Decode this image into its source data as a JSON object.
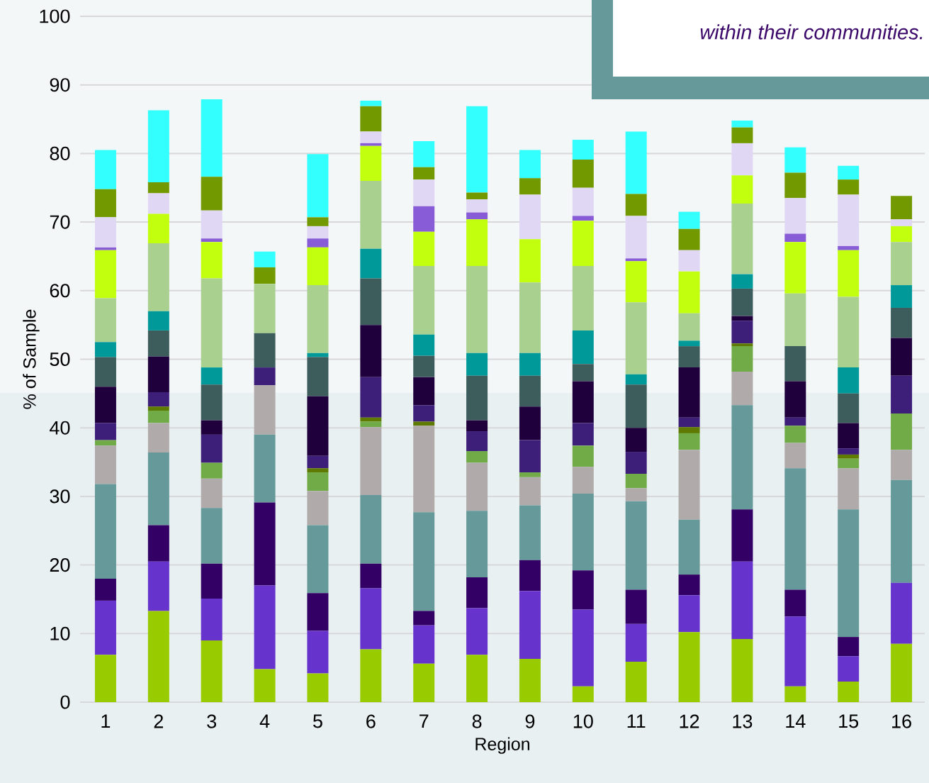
{
  "chart_data": {
    "type": "bar",
    "stacked": true,
    "grid": "y",
    "xlabel": "Region",
    "ylabel": "% of Sample",
    "annotations": [
      "within their communities."
    ],
    "categories": [
      "1",
      "2",
      "3",
      "4",
      "5",
      "6",
      "7",
      "8",
      "9",
      "10",
      "11",
      "12",
      "13",
      "14",
      "15",
      "16"
    ],
    "ylim": [
      0,
      100
    ],
    "yticks": [
      0,
      10,
      20,
      30,
      40,
      50,
      60,
      70,
      80,
      90,
      100
    ],
    "series": [
      {
        "color": "#99cc00",
        "values": [
          6.9,
          13.3,
          9.0,
          4.8,
          4.2,
          7.7,
          5.6,
          6.9,
          6.3,
          2.3,
          5.9,
          10.2,
          9.2,
          2.3,
          3.0,
          8.5
        ]
      },
      {
        "color": "#6633cc",
        "values": [
          7.9,
          7.2,
          6.1,
          12.2,
          6.2,
          8.9,
          5.6,
          6.8,
          9.9,
          11.2,
          5.5,
          5.4,
          11.3,
          10.2,
          3.7,
          8.9
        ]
      },
      {
        "color": "#330066",
        "values": [
          3.2,
          5.3,
          5.1,
          12.1,
          5.5,
          3.6,
          2.1,
          4.5,
          4.5,
          5.7,
          5.0,
          3.0,
          7.6,
          3.9,
          2.8,
          0
        ]
      },
      {
        "color": "#669999",
        "values": [
          13.8,
          10.6,
          8.1,
          9.9,
          9.9,
          10.0,
          14.4,
          9.7,
          8.0,
          11.2,
          12.9,
          8.0,
          15.2,
          17.7,
          18.6,
          15.0
        ]
      },
      {
        "color": "#b0abaa",
        "values": [
          5.6,
          4.3,
          4.3,
          7.2,
          5.0,
          9.9,
          12.6,
          7.0,
          4.1,
          3.9,
          1.9,
          10.2,
          4.9,
          3.7,
          6.0,
          4.4
        ]
      },
      {
        "color": "#70ab47",
        "values": [
          0.8,
          1.8,
          2.3,
          0,
          2.7,
          0.8,
          0,
          1.7,
          0.7,
          3.1,
          2.1,
          2.4,
          3.7,
          2.5,
          1.4,
          5.3
        ]
      },
      {
        "color": "#5f7a00",
        "values": [
          0,
          0.6,
          0,
          0,
          0.6,
          0.6,
          0.6,
          0,
          0,
          0,
          0,
          0.9,
          0.4,
          0,
          0.6,
          0
        ]
      },
      {
        "color": "#3d1f7a",
        "values": [
          2.5,
          2.1,
          4.1,
          2.6,
          1.8,
          5.9,
          2.4,
          2.9,
          4.7,
          3.3,
          3.2,
          1.4,
          3.3,
          1.2,
          0.9,
          5.5
        ]
      },
      {
        "color": "#1f003d",
        "values": [
          5.3,
          5.2,
          2.1,
          0,
          8.7,
          7.6,
          4.1,
          1.6,
          4.9,
          6.1,
          3.5,
          7.3,
          0.7,
          5.3,
          3.7,
          5.5
        ]
      },
      {
        "color": "#3d5c5c",
        "values": [
          4.3,
          3.8,
          5.2,
          5.0,
          5.7,
          6.8,
          3.1,
          6.5,
          4.5,
          2.5,
          6.3,
          3.1,
          4.0,
          5.1,
          4.3,
          4.4
        ]
      },
      {
        "color": "#009999",
        "values": [
          2.2,
          2.8,
          2.5,
          0,
          0.6,
          4.3,
          3.1,
          3.3,
          3.3,
          4.9,
          1.5,
          0.8,
          2.1,
          0,
          3.8,
          3.3
        ]
      },
      {
        "color": "#a9d08e",
        "values": [
          6.4,
          9.9,
          13.0,
          7.2,
          9.9,
          9.9,
          10.0,
          12.7,
          10.3,
          9.4,
          10.5,
          4.0,
          10.3,
          7.7,
          10.3,
          6.3
        ]
      },
      {
        "color": "#c2ff0f",
        "values": [
          7.0,
          4.3,
          5.3,
          0,
          5.5,
          5.1,
          5.0,
          6.8,
          6.3,
          6.6,
          6.0,
          6.1,
          4.1,
          7.5,
          6.8,
          2.3
        ]
      },
      {
        "color": "#885cd6",
        "values": [
          0.4,
          0,
          0.5,
          0,
          1.3,
          0.4,
          3.7,
          1.0,
          0,
          0.7,
          0.4,
          0,
          0,
          1.2,
          0.6,
          0
        ]
      },
      {
        "color": "#e0d7f5",
        "values": [
          4.4,
          3.0,
          4.1,
          0,
          1.8,
          1.7,
          3.9,
          1.9,
          6.5,
          4.1,
          6.2,
          3.1,
          4.7,
          5.2,
          7.5,
          1.0
        ]
      },
      {
        "color": "#739900",
        "values": [
          4.1,
          1.6,
          4.9,
          2.4,
          1.3,
          3.7,
          1.8,
          1.0,
          2.4,
          4.1,
          3.2,
          3.1,
          2.3,
          3.7,
          2.2,
          3.4
        ]
      },
      {
        "color": "#33ffff",
        "values": [
          5.7,
          10.5,
          11.3,
          2.3,
          9.2,
          0.8,
          3.8,
          12.6,
          4.1,
          2.9,
          9.1,
          2.5,
          1.0,
          3.7,
          2.0,
          0
        ]
      }
    ]
  }
}
